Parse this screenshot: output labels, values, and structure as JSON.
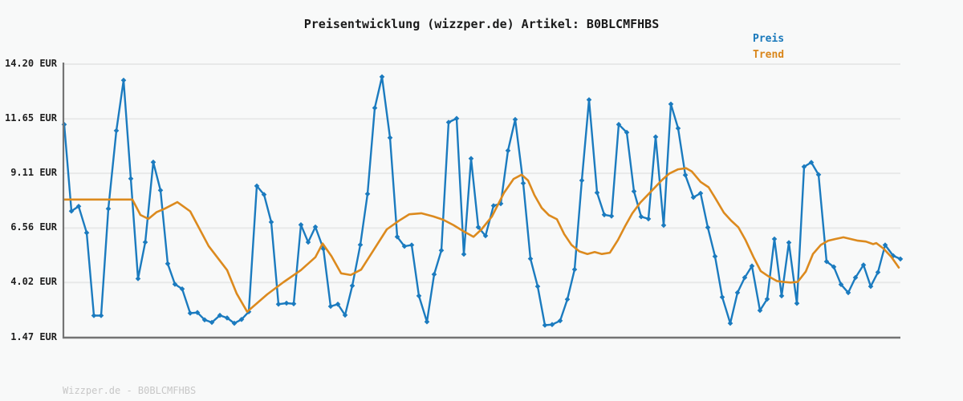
{
  "title": "Preisentwicklung (wizzper.de) Artikel: B0BLCMFHBS",
  "watermark": "Wizzper.de - B0BLCMFHBS",
  "legend": {
    "items": [
      {
        "label": "Preis",
        "color": "#1878bb"
      },
      {
        "label": "Trend",
        "color": "#d9861b"
      }
    ]
  },
  "colors": {
    "price_line": "#1b7bbf",
    "trend_line": "#dc8a1e",
    "grid_line": "#e8e9e9",
    "axis_line": "#747474",
    "background": "#f8f9f9",
    "title_text": "#1a1a1a",
    "tick_text": "#1f1f1f",
    "watermark_text": "#c7c7c7"
  },
  "chart_data": {
    "type": "line",
    "title": "Preisentwicklung (wizzper.de) Artikel: B0BLCMFHBS",
    "currency": "EUR",
    "ylabel": "EUR",
    "ylim": [
      1.47,
      14.2
    ],
    "yticks": [
      {
        "value": 14.2,
        "label": "14.20 EUR"
      },
      {
        "value": 11.65,
        "label": "11.65 EUR"
      },
      {
        "value": 9.11,
        "label": "9.11 EUR"
      },
      {
        "value": 6.56,
        "label": "6.56 EUR"
      },
      {
        "value": 4.02,
        "label": "4.02 EUR"
      },
      {
        "value": 1.47,
        "label": "1.47 EUR"
      }
    ],
    "x_axis": {
      "tick_labels_visible": false,
      "note": "time axis without visible date labels; x stored as canvas px position"
    },
    "grid": true,
    "legend_position": "top-right",
    "series": [
      {
        "name": "Preis",
        "color": "#1b7bbf",
        "marker": "diamond",
        "points": [
          [
            80,
            11.39
          ],
          [
            89,
            7.35
          ],
          [
            98,
            7.57
          ],
          [
            108,
            6.34
          ],
          [
            117,
            2.48
          ],
          [
            126,
            2.48
          ],
          [
            135,
            7.46
          ],
          [
            145,
            11.1
          ],
          [
            154,
            13.45
          ],
          [
            163,
            8.86
          ],
          [
            172,
            4.2
          ],
          [
            181,
            5.9
          ],
          [
            191,
            9.63
          ],
          [
            200,
            8.32
          ],
          [
            209,
            4.9
          ],
          [
            218,
            3.94
          ],
          [
            227,
            3.72
          ],
          [
            237,
            2.59
          ],
          [
            246,
            2.62
          ],
          [
            255,
            2.28
          ],
          [
            264,
            2.16
          ],
          [
            274,
            2.49
          ],
          [
            283,
            2.37
          ],
          [
            292,
            2.12
          ],
          [
            301,
            2.3
          ],
          [
            310,
            2.66
          ],
          [
            320,
            8.52
          ],
          [
            329,
            8.12
          ],
          [
            338,
            6.84
          ],
          [
            347,
            3.01
          ],
          [
            357,
            3.06
          ],
          [
            366,
            3.03
          ],
          [
            375,
            6.71
          ],
          [
            384,
            5.9
          ],
          [
            393,
            6.61
          ],
          [
            403,
            5.59
          ],
          [
            412,
            2.91
          ],
          [
            421,
            3.01
          ],
          [
            430,
            2.5
          ],
          [
            439,
            3.87
          ],
          [
            449,
            5.78
          ],
          [
            458,
            8.15
          ],
          [
            467,
            12.16
          ],
          [
            476,
            13.61
          ],
          [
            486,
            10.77
          ],
          [
            495,
            6.15
          ],
          [
            504,
            5.71
          ],
          [
            513,
            5.77
          ],
          [
            522,
            3.4
          ],
          [
            532,
            2.19
          ],
          [
            541,
            4.4
          ],
          [
            550,
            5.52
          ],
          [
            559,
            11.49
          ],
          [
            569,
            11.67
          ],
          [
            578,
            5.34
          ],
          [
            587,
            9.8
          ],
          [
            596,
            6.6
          ],
          [
            605,
            6.2
          ],
          [
            615,
            7.6
          ],
          [
            624,
            7.7
          ],
          [
            633,
            10.17
          ],
          [
            642,
            11.62
          ],
          [
            652,
            8.65
          ],
          [
            661,
            5.13
          ],
          [
            670,
            3.84
          ],
          [
            679,
            2.03
          ],
          [
            688,
            2.06
          ],
          [
            698,
            2.24
          ],
          [
            707,
            3.24
          ],
          [
            716,
            4.63
          ],
          [
            725,
            8.78
          ],
          [
            734,
            12.54
          ],
          [
            744,
            8.21
          ],
          [
            753,
            7.18
          ],
          [
            762,
            7.12
          ],
          [
            771,
            11.39
          ],
          [
            781,
            11.02
          ],
          [
            790,
            8.27
          ],
          [
            799,
            7.09
          ],
          [
            808,
            6.99
          ],
          [
            817,
            10.81
          ],
          [
            827,
            6.69
          ],
          [
            836,
            12.34
          ],
          [
            845,
            11.21
          ],
          [
            854,
            9.03
          ],
          [
            864,
            7.99
          ],
          [
            873,
            8.18
          ],
          [
            882,
            6.59
          ],
          [
            891,
            5.24
          ],
          [
            900,
            3.34
          ],
          [
            910,
            2.12
          ],
          [
            919,
            3.55
          ],
          [
            928,
            4.25
          ],
          [
            937,
            4.79
          ],
          [
            947,
            2.72
          ],
          [
            956,
            3.25
          ],
          [
            965,
            6.05
          ],
          [
            974,
            3.4
          ],
          [
            983,
            5.88
          ],
          [
            993,
            3.05
          ],
          [
            1002,
            9.42
          ],
          [
            1011,
            9.62
          ],
          [
            1020,
            9.05
          ],
          [
            1030,
            5.0
          ],
          [
            1039,
            4.75
          ],
          [
            1048,
            3.93
          ],
          [
            1057,
            3.55
          ],
          [
            1066,
            4.25
          ],
          [
            1076,
            4.84
          ],
          [
            1085,
            3.84
          ],
          [
            1094,
            4.5
          ],
          [
            1103,
            5.77
          ],
          [
            1113,
            5.27
          ],
          [
            1122,
            5.12
          ]
        ]
      },
      {
        "name": "Trend",
        "color": "#dc8a1e",
        "marker": "none",
        "points": [
          [
            80,
            7.89
          ],
          [
            165,
            7.89
          ],
          [
            175,
            7.17
          ],
          [
            185,
            6.99
          ],
          [
            195,
            7.3
          ],
          [
            205,
            7.46
          ],
          [
            221,
            7.77
          ],
          [
            237,
            7.34
          ],
          [
            260,
            5.72
          ],
          [
            283,
            4.6
          ],
          [
            295,
            3.5
          ],
          [
            308,
            2.66
          ],
          [
            333,
            3.47
          ],
          [
            353,
            4.03
          ],
          [
            375,
            4.6
          ],
          [
            393,
            5.2
          ],
          [
            402,
            5.84
          ],
          [
            413,
            5.25
          ],
          [
            425,
            4.45
          ],
          [
            437,
            4.37
          ],
          [
            450,
            4.62
          ],
          [
            465,
            5.5
          ],
          [
            482,
            6.5
          ],
          [
            497,
            6.9
          ],
          [
            510,
            7.2
          ],
          [
            525,
            7.25
          ],
          [
            540,
            7.1
          ],
          [
            552,
            6.95
          ],
          [
            565,
            6.7
          ],
          [
            578,
            6.4
          ],
          [
            590,
            6.15
          ],
          [
            600,
            6.5
          ],
          [
            613,
            7.1
          ],
          [
            628,
            8.2
          ],
          [
            640,
            8.85
          ],
          [
            650,
            9.05
          ],
          [
            658,
            8.78
          ],
          [
            666,
            8.09
          ],
          [
            675,
            7.5
          ],
          [
            684,
            7.16
          ],
          [
            694,
            6.97
          ],
          [
            703,
            6.28
          ],
          [
            712,
            5.78
          ],
          [
            722,
            5.47
          ],
          [
            732,
            5.35
          ],
          [
            741,
            5.44
          ],
          [
            750,
            5.35
          ],
          [
            760,
            5.41
          ],
          [
            770,
            6.0
          ],
          [
            779,
            6.65
          ],
          [
            788,
            7.25
          ],
          [
            798,
            7.75
          ],
          [
            807,
            8.1
          ],
          [
            816,
            8.45
          ],
          [
            825,
            8.8
          ],
          [
            834,
            9.1
          ],
          [
            845,
            9.3
          ],
          [
            855,
            9.35
          ],
          [
            862,
            9.2
          ],
          [
            873,
            8.71
          ],
          [
            883,
            8.46
          ],
          [
            892,
            7.91
          ],
          [
            902,
            7.28
          ],
          [
            911,
            6.91
          ],
          [
            920,
            6.6
          ],
          [
            929,
            6.0
          ],
          [
            939,
            5.2
          ],
          [
            948,
            4.55
          ],
          [
            958,
            4.3
          ],
          [
            968,
            4.09
          ],
          [
            976,
            4.05
          ],
          [
            985,
            4.02
          ],
          [
            994,
            4.05
          ],
          [
            1004,
            4.53
          ],
          [
            1013,
            5.35
          ],
          [
            1023,
            5.78
          ],
          [
            1032,
            5.97
          ],
          [
            1041,
            6.05
          ],
          [
            1051,
            6.13
          ],
          [
            1060,
            6.05
          ],
          [
            1069,
            5.97
          ],
          [
            1079,
            5.93
          ],
          [
            1088,
            5.81
          ],
          [
            1092,
            5.86
          ],
          [
            1101,
            5.6
          ],
          [
            1111,
            5.2
          ],
          [
            1120,
            4.72
          ]
        ]
      }
    ]
  }
}
